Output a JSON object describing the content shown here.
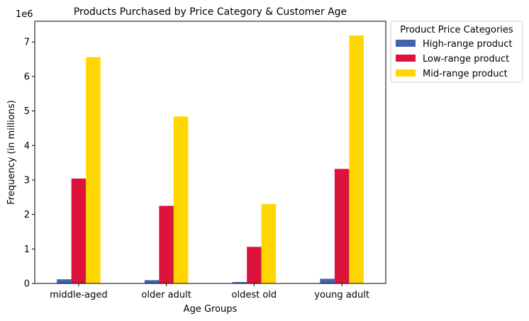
{
  "chart_data": {
    "type": "bar",
    "title": "Products Purchased by Price Category & Customer Age",
    "xlabel": "Age Groups",
    "ylabel": "Frequency (in millions)",
    "y_offset_text": "1e6",
    "categories": [
      "middle-aged",
      "older adult",
      "oldest old",
      "young adult"
    ],
    "series": [
      {
        "name": "High-range product",
        "color": "#4363ac",
        "values": [
          120000,
          95000,
          40000,
          135000
        ]
      },
      {
        "name": "Low-range product",
        "color": "#dc143c",
        "values": [
          3040000,
          2250000,
          1060000,
          3320000
        ]
      },
      {
        "name": "Mid-range product",
        "color": "#ffd700",
        "values": [
          6560000,
          4840000,
          2300000,
          7190000
        ]
      }
    ],
    "ylim": [
      0,
      7600000
    ],
    "yticks": [
      0,
      1000000,
      2000000,
      3000000,
      4000000,
      5000000,
      6000000,
      7000000
    ],
    "ytick_labels": [
      "0",
      "1",
      "2",
      "3",
      "4",
      "5",
      "6",
      "7"
    ],
    "legend": {
      "title": "Product Price Categories",
      "placement": "outside-top-right"
    },
    "grid": false
  }
}
